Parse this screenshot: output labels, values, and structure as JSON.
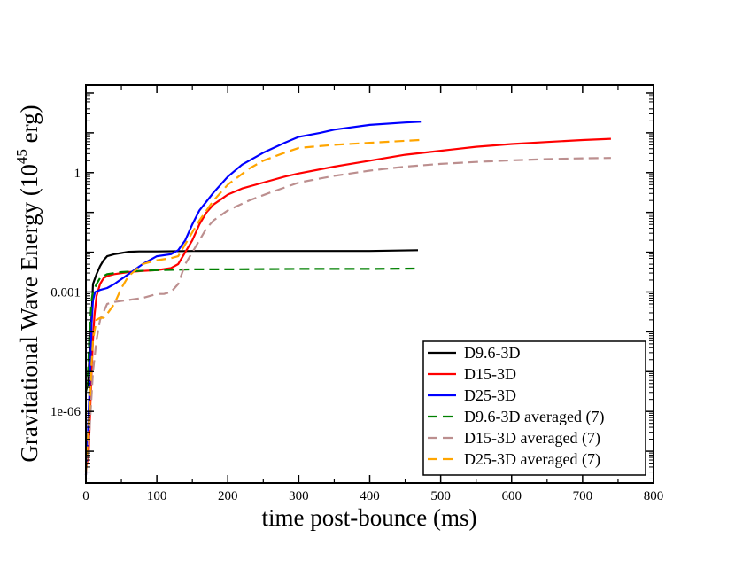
{
  "chart_data": {
    "type": "line",
    "title": "",
    "xlabel": "time post-bounce (ms)",
    "ylabel": {
      "prefix": "Gravitational Wave Energy (10",
      "exponent": "45",
      "suffix": " erg)"
    },
    "xlim": [
      0,
      800
    ],
    "ylim_log10": [
      -7.8,
      2.2
    ],
    "y_scale": "log",
    "x_ticks": [
      0,
      100,
      200,
      300,
      400,
      500,
      600,
      700,
      800
    ],
    "x_tick_labels": [
      "0",
      "100",
      "200",
      "300",
      "400",
      "500",
      "600",
      "700",
      "800"
    ],
    "y_ticks_log10": [
      -6,
      -3,
      0
    ],
    "y_tick_labels": [
      "1e-06",
      "0.001",
      "1"
    ],
    "legend_position": "bottom-right",
    "series": [
      {
        "name": "D9.6-3D",
        "color": "#000000",
        "dash": "solid",
        "x": [
          0,
          3,
          5,
          8,
          10,
          12,
          15,
          20,
          25,
          30,
          40,
          50,
          60,
          75,
          100,
          150,
          200,
          300,
          400,
          468
        ],
        "log10_y": [
          -5.5,
          -5.3,
          -4.6,
          -3.6,
          -2.8,
          -2.7,
          -2.55,
          -2.35,
          -2.2,
          -2.1,
          -2.05,
          -2.02,
          -1.99,
          -1.98,
          -1.98,
          -1.97,
          -1.97,
          -1.97,
          -1.97,
          -1.95
        ]
      },
      {
        "name": "D15-3D",
        "color": "#ff0000",
        "dash": "solid",
        "x": [
          0,
          4,
          6,
          8,
          10,
          12,
          15,
          20,
          25,
          30,
          40,
          60,
          80,
          100,
          120,
          130,
          140,
          150,
          160,
          170,
          180,
          200,
          220,
          250,
          280,
          300,
          350,
          400,
          450,
          500,
          550,
          600,
          650,
          700,
          740
        ],
        "log10_y": [
          -7.5,
          -7.0,
          -6.0,
          -5.0,
          -4.2,
          -3.6,
          -3.1,
          -2.8,
          -2.65,
          -2.6,
          -2.55,
          -2.5,
          -2.47,
          -2.45,
          -2.4,
          -2.3,
          -2.0,
          -1.7,
          -1.3,
          -1.0,
          -0.8,
          -0.55,
          -0.4,
          -0.25,
          -0.1,
          -0.02,
          0.15,
          0.3,
          0.45,
          0.55,
          0.65,
          0.72,
          0.77,
          0.82,
          0.85
        ]
      },
      {
        "name": "D25-3D",
        "color": "#0000ff",
        "dash": "solid",
        "x": [
          0,
          3,
          6,
          8,
          10,
          13,
          20,
          30,
          40,
          60,
          80,
          100,
          120,
          130,
          140,
          150,
          160,
          180,
          200,
          220,
          250,
          280,
          300,
          330,
          350,
          400,
          450,
          472
        ],
        "log10_y": [
          -7.6,
          -6.5,
          -5.0,
          -3.8,
          -3.2,
          -3.0,
          -2.95,
          -2.9,
          -2.8,
          -2.55,
          -2.3,
          -2.1,
          -2.05,
          -1.95,
          -1.7,
          -1.3,
          -0.95,
          -0.5,
          -0.1,
          0.2,
          0.5,
          0.75,
          0.9,
          1.0,
          1.08,
          1.2,
          1.26,
          1.28
        ]
      },
      {
        "name": "D9.6-3D averaged (7)",
        "color": "#008000",
        "dash": "dashed",
        "x": [
          0,
          3,
          5,
          8,
          10,
          15,
          20,
          30,
          50,
          75,
          100,
          150,
          200,
          300,
          400,
          468
        ],
        "log10_y": [
          -5.5,
          -5.0,
          -4.0,
          -3.2,
          -3.0,
          -2.8,
          -2.65,
          -2.55,
          -2.5,
          -2.47,
          -2.45,
          -2.43,
          -2.43,
          -2.42,
          -2.42,
          -2.41
        ]
      },
      {
        "name": "D15-3D averaged (7)",
        "color": "#bc8f8f",
        "dash": "dashed",
        "x": [
          0,
          5,
          10,
          15,
          20,
          25,
          30,
          40,
          60,
          80,
          100,
          110,
          120,
          130,
          140,
          150,
          160,
          170,
          180,
          200,
          230,
          260,
          300,
          350,
          400,
          450,
          500,
          550,
          600,
          650,
          700,
          740
        ],
        "log10_y": [
          -7.6,
          -6.5,
          -5.0,
          -4.2,
          -3.7,
          -3.5,
          -3.3,
          -3.25,
          -3.2,
          -3.15,
          -3.05,
          -3.05,
          -3.0,
          -2.8,
          -2.3,
          -2.0,
          -1.7,
          -1.4,
          -1.2,
          -0.95,
          -0.7,
          -0.5,
          -0.25,
          -0.08,
          0.05,
          0.15,
          0.22,
          0.27,
          0.31,
          0.34,
          0.36,
          0.37
        ]
      },
      {
        "name": "D25-3D averaged (7)",
        "color": "#ffa500",
        "dash": "dashed",
        "x": [
          0,
          5,
          8,
          10,
          15,
          20,
          25,
          30,
          40,
          50,
          60,
          80,
          100,
          120,
          130,
          140,
          150,
          160,
          180,
          200,
          230,
          250,
          280,
          300,
          350,
          400,
          450,
          470
        ],
        "log10_y": [
          -7.5,
          -6.0,
          -4.8,
          -4.2,
          -3.7,
          -3.65,
          -3.65,
          -3.55,
          -3.3,
          -2.9,
          -2.6,
          -2.3,
          -2.2,
          -2.15,
          -2.1,
          -1.8,
          -1.5,
          -1.2,
          -0.7,
          -0.3,
          0.1,
          0.3,
          0.5,
          0.62,
          0.7,
          0.75,
          0.8,
          0.82
        ]
      }
    ]
  }
}
